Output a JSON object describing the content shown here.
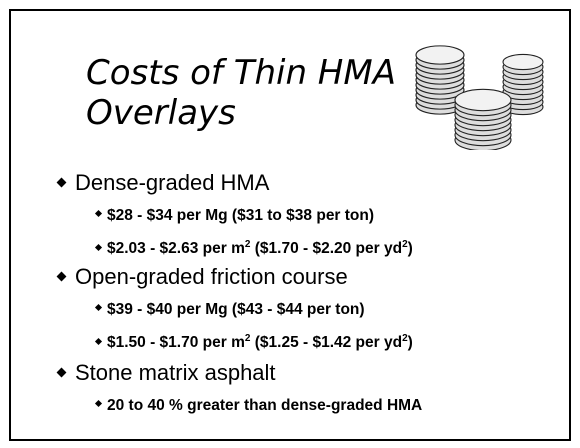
{
  "title": {
    "lines": [
      "Costs of Thin HMA",
      "Overlays"
    ]
  },
  "bullets": [
    {
      "text": "Dense-graded HMA",
      "items": [
        [
          "$28 - $34 per Mg ($31 to $38 per ton)"
        ],
        [
          "$2.03 - $2.63 per m",
          "2",
          "  ($1.70 - $2.20 per yd",
          "2",
          ")"
        ]
      ]
    },
    {
      "text": "Open-graded friction course",
      "items": [
        [
          "$39 - $40 per Mg ($43 - $44 per ton)"
        ],
        [
          "$1.50 - $1.70 per m",
          "2",
          "  ($1.25 - $1.42 per yd",
          "2",
          ")"
        ]
      ]
    },
    {
      "text": "Stone matrix asphalt",
      "items": [
        [
          "20 to 40 % greater than dense-graded HMA"
        ]
      ]
    }
  ]
}
